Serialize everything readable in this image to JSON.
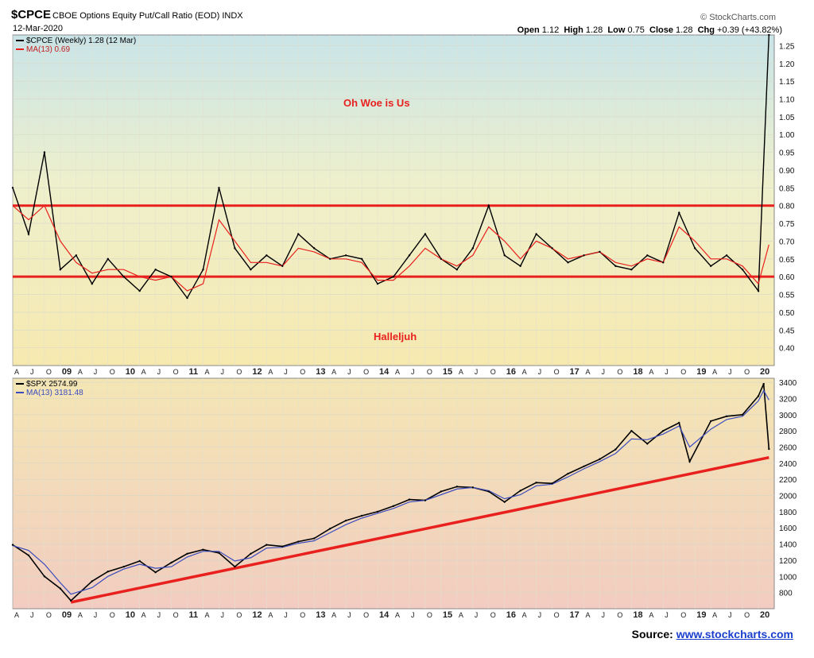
{
  "header": {
    "symbol": "$CPCE",
    "description": "CBOE Options Equity Put/Call Ratio (EOD) INDX",
    "date": "12-Mar-2020",
    "watermark": "© StockCharts.com",
    "open_label": "Open",
    "open": "1.12",
    "high_label": "High",
    "high": "1.28",
    "low_label": "Low",
    "low": "0.75",
    "close_label": "Close",
    "close": "1.28",
    "chg_label": "Chg",
    "chg": "+0.39 (+43.82%)"
  },
  "source": {
    "label": "Source:",
    "link": "www.stockcharts.com"
  },
  "colors": {
    "red": "#e8211e",
    "price_line": "#000000",
    "ma_blue": "#3b4bbf"
  },
  "chart_data": [
    {
      "type": "line",
      "title": "$CPCE (Weekly) 1.28 (12 Mar)",
      "series": [
        {
          "name": "$CPCE (Weekly) 1.28 (12 Mar)",
          "x": [
            "2008-04",
            "2008-07",
            "2008-10",
            "2009-01",
            "2009-04",
            "2009-07",
            "2009-10",
            "2010-01",
            "2010-04",
            "2010-07",
            "2010-10",
            "2011-01",
            "2011-04",
            "2011-07",
            "2011-10",
            "2012-01",
            "2012-04",
            "2012-07",
            "2012-10",
            "2013-01",
            "2013-04",
            "2013-07",
            "2013-10",
            "2014-01",
            "2014-04",
            "2014-07",
            "2014-10",
            "2015-01",
            "2015-04",
            "2015-07",
            "2015-10",
            "2016-01",
            "2016-04",
            "2016-07",
            "2016-10",
            "2017-01",
            "2017-04",
            "2017-07",
            "2017-10",
            "2018-01",
            "2018-04",
            "2018-07",
            "2018-10",
            "2019-01",
            "2019-04",
            "2019-07",
            "2019-10",
            "2020-01",
            "2020-03"
          ],
          "values": [
            0.85,
            0.72,
            0.95,
            0.62,
            0.66,
            0.58,
            0.65,
            0.6,
            0.56,
            0.62,
            0.6,
            0.54,
            0.62,
            0.85,
            0.68,
            0.62,
            0.66,
            0.63,
            0.72,
            0.68,
            0.65,
            0.66,
            0.65,
            0.58,
            0.6,
            0.66,
            0.72,
            0.65,
            0.62,
            0.68,
            0.8,
            0.66,
            0.63,
            0.72,
            0.68,
            0.64,
            0.66,
            0.67,
            0.63,
            0.62,
            0.66,
            0.64,
            0.78,
            0.68,
            0.63,
            0.66,
            0.62,
            0.56,
            1.28
          ]
        },
        {
          "name": "MA(13) 0.69",
          "x": [
            "2008-04",
            "2008-07",
            "2008-10",
            "2009-01",
            "2009-04",
            "2009-07",
            "2009-10",
            "2010-01",
            "2010-04",
            "2010-07",
            "2010-10",
            "2011-01",
            "2011-04",
            "2011-07",
            "2011-10",
            "2012-01",
            "2012-04",
            "2012-07",
            "2012-10",
            "2013-01",
            "2013-04",
            "2013-07",
            "2013-10",
            "2014-01",
            "2014-04",
            "2014-07",
            "2014-10",
            "2015-01",
            "2015-04",
            "2015-07",
            "2015-10",
            "2016-01",
            "2016-04",
            "2016-07",
            "2016-10",
            "2017-01",
            "2017-04",
            "2017-07",
            "2017-10",
            "2018-01",
            "2018-04",
            "2018-07",
            "2018-10",
            "2019-01",
            "2019-04",
            "2019-07",
            "2019-10",
            "2020-01",
            "2020-03"
          ],
          "values": [
            0.8,
            0.76,
            0.8,
            0.7,
            0.64,
            0.61,
            0.62,
            0.62,
            0.6,
            0.59,
            0.6,
            0.56,
            0.58,
            0.76,
            0.7,
            0.64,
            0.64,
            0.63,
            0.68,
            0.67,
            0.65,
            0.65,
            0.64,
            0.59,
            0.59,
            0.63,
            0.68,
            0.65,
            0.63,
            0.66,
            0.74,
            0.7,
            0.65,
            0.7,
            0.68,
            0.65,
            0.66,
            0.67,
            0.64,
            0.63,
            0.65,
            0.64,
            0.74,
            0.7,
            0.65,
            0.65,
            0.63,
            0.58,
            0.69
          ]
        }
      ],
      "ylim": [
        0.35,
        1.28
      ],
      "yticks": [
        0.4,
        0.45,
        0.5,
        0.55,
        0.6,
        0.65,
        0.7,
        0.75,
        0.8,
        0.85,
        0.9,
        0.95,
        1.0,
        1.05,
        1.1,
        1.15,
        1.2,
        1.25
      ],
      "reference_lines": [
        0.8,
        0.6
      ],
      "annotations": [
        "Oh Woe is Us",
        "Halleljuh"
      ],
      "grid": true
    },
    {
      "type": "line",
      "title": "$SPX 2574.99",
      "series": [
        {
          "name": "$SPX 2574.99",
          "x": [
            "2008-04",
            "2008-07",
            "2008-10",
            "2009-01",
            "2009-03",
            "2009-07",
            "2009-10",
            "2010-01",
            "2010-04",
            "2010-07",
            "2010-10",
            "2011-01",
            "2011-04",
            "2011-07",
            "2011-10",
            "2012-01",
            "2012-04",
            "2012-07",
            "2012-10",
            "2013-01",
            "2013-04",
            "2013-07",
            "2013-10",
            "2014-01",
            "2014-04",
            "2014-07",
            "2014-10",
            "2015-01",
            "2015-04",
            "2015-07",
            "2015-10",
            "2016-01",
            "2016-04",
            "2016-07",
            "2016-10",
            "2017-01",
            "2017-04",
            "2017-07",
            "2017-10",
            "2018-01",
            "2018-04",
            "2018-07",
            "2018-10",
            "2018-12",
            "2019-04",
            "2019-07",
            "2019-10",
            "2020-01",
            "2020-02",
            "2020-03"
          ],
          "values": [
            1390,
            1260,
            1000,
            850,
            700,
            940,
            1060,
            1120,
            1190,
            1050,
            1170,
            1280,
            1330,
            1290,
            1120,
            1280,
            1390,
            1370,
            1430,
            1470,
            1590,
            1690,
            1750,
            1800,
            1870,
            1950,
            1940,
            2050,
            2110,
            2100,
            2050,
            1920,
            2060,
            2160,
            2150,
            2270,
            2360,
            2450,
            2570,
            2800,
            2640,
            2800,
            2900,
            2420,
            2920,
            2980,
            3000,
            3230,
            3380,
            2575
          ]
        },
        {
          "name": "MA(13) 3181.48",
          "x": [
            "2008-04",
            "2008-07",
            "2008-10",
            "2009-01",
            "2009-03",
            "2009-07",
            "2009-10",
            "2010-01",
            "2010-04",
            "2010-07",
            "2010-10",
            "2011-01",
            "2011-04",
            "2011-07",
            "2011-10",
            "2012-01",
            "2012-04",
            "2012-07",
            "2012-10",
            "2013-01",
            "2013-04",
            "2013-07",
            "2013-10",
            "2014-01",
            "2014-04",
            "2014-07",
            "2014-10",
            "2015-01",
            "2015-04",
            "2015-07",
            "2015-10",
            "2016-01",
            "2016-04",
            "2016-07",
            "2016-10",
            "2017-01",
            "2017-04",
            "2017-07",
            "2017-10",
            "2018-01",
            "2018-04",
            "2018-07",
            "2018-10",
            "2018-12",
            "2019-04",
            "2019-07",
            "2019-10",
            "2020-01",
            "2020-02",
            "2020-03"
          ],
          "values": [
            1380,
            1320,
            1150,
            920,
            780,
            860,
            1000,
            1090,
            1150,
            1100,
            1120,
            1240,
            1310,
            1310,
            1190,
            1230,
            1350,
            1360,
            1410,
            1440,
            1540,
            1640,
            1720,
            1780,
            1840,
            1920,
            1940,
            2010,
            2080,
            2100,
            2060,
            1960,
            2010,
            2120,
            2140,
            2230,
            2330,
            2420,
            2520,
            2700,
            2690,
            2760,
            2860,
            2600,
            2820,
            2940,
            2980,
            3170,
            3300,
            3181
          ]
        }
      ],
      "ylim": [
        600,
        3450
      ],
      "yticks": [
        800,
        1000,
        1200,
        1400,
        1600,
        1800,
        2000,
        2200,
        2400,
        2600,
        2800,
        3000,
        3200,
        3400
      ],
      "trendline": {
        "x": [
          "2009-03",
          "2020-03"
        ],
        "values": [
          680,
          2470
        ]
      },
      "grid": true
    }
  ],
  "xaxis": {
    "labels": [
      "A",
      "J",
      "O",
      "09",
      "A",
      "J",
      "O",
      "10",
      "A",
      "J",
      "O",
      "11",
      "A",
      "J",
      "O",
      "12",
      "A",
      "J",
      "O",
      "13",
      "A",
      "J",
      "O",
      "14",
      "A",
      "J",
      "O",
      "15",
      "A",
      "J",
      "O",
      "16",
      "A",
      "J",
      "O",
      "17",
      "A",
      "J",
      "O",
      "18",
      "A",
      "J",
      "O",
      "19",
      "A",
      "J",
      "O",
      "20"
    ],
    "year_labels": [
      "09",
      "10",
      "11",
      "12",
      "13",
      "14",
      "15",
      "16",
      "17",
      "18",
      "19",
      "20"
    ]
  }
}
